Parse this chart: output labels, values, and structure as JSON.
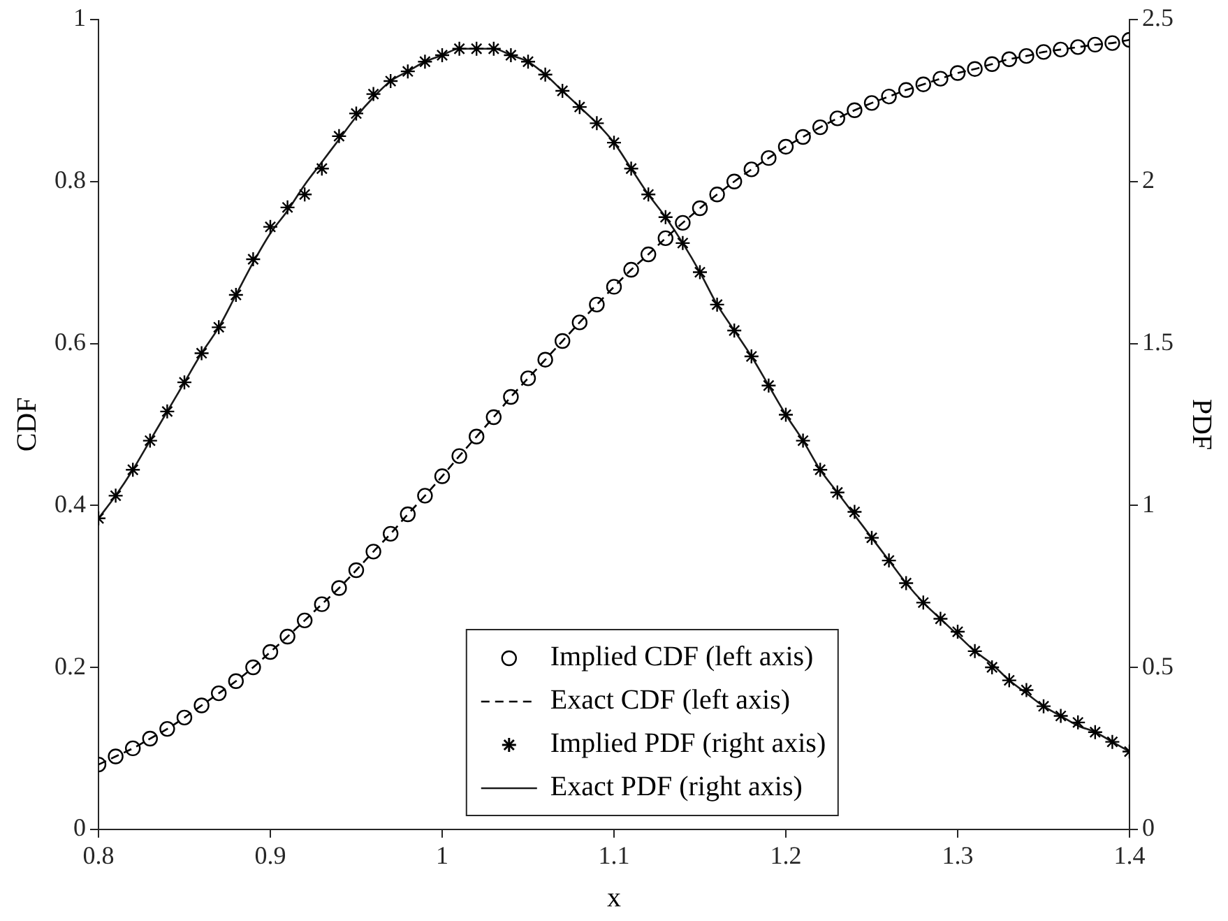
{
  "chart_data": {
    "type": "scatter",
    "xlabel": "x",
    "ylabel": "CDF",
    "y2label": "PDF",
    "x": [
      0.8,
      0.81,
      0.82,
      0.83,
      0.84,
      0.85,
      0.86,
      0.87,
      0.88,
      0.89,
      0.9,
      0.91,
      0.92,
      0.93,
      0.94,
      0.95,
      0.96,
      0.97,
      0.98,
      0.99,
      1,
      1.01,
      1.02,
      1.03,
      1.04,
      1.05,
      1.06,
      1.07,
      1.08,
      1.09,
      1.1,
      1.11,
      1.12,
      1.13,
      1.14,
      1.15,
      1.16,
      1.17,
      1.18,
      1.19,
      1.2,
      1.21,
      1.22,
      1.23,
      1.24,
      1.25,
      1.26,
      1.27,
      1.28,
      1.29,
      1.3,
      1.31,
      1.32,
      1.33,
      1.34,
      1.35,
      1.36,
      1.37,
      1.38,
      1.39,
      1.4
    ],
    "series": [
      {
        "name": "Implied CDF (left axis)",
        "type": "scatter",
        "marker": "circle",
        "color": "#000000",
        "values": [
          0.08,
          0.09,
          0.1,
          0.112,
          0.124,
          0.138,
          0.153,
          0.168,
          0.183,
          0.2,
          0.219,
          0.238,
          0.258,
          0.278,
          0.298,
          0.32,
          0.343,
          0.365,
          0.389,
          0.412,
          0.436,
          0.461,
          0.485,
          0.509,
          0.534,
          0.557,
          0.58,
          0.603,
          0.626,
          0.648,
          0.67,
          0.691,
          0.71,
          0.73,
          0.749,
          0.767,
          0.784,
          0.8,
          0.815,
          0.829,
          0.843,
          0.855,
          0.867,
          0.878,
          0.888,
          0.897,
          0.905,
          0.913,
          0.92,
          0.927,
          0.934,
          0.939,
          0.945,
          0.951,
          0.955,
          0.96,
          0.963,
          0.966,
          0.969,
          0.971,
          0.975
        ]
      },
      {
        "name": "Exact CDF (left axis)",
        "type": "line",
        "line_style": "dashed",
        "color": "#000000",
        "values": [
          0.08,
          0.09,
          0.1,
          0.112,
          0.124,
          0.138,
          0.153,
          0.168,
          0.183,
          0.2,
          0.219,
          0.238,
          0.258,
          0.278,
          0.298,
          0.32,
          0.343,
          0.365,
          0.389,
          0.412,
          0.436,
          0.461,
          0.485,
          0.509,
          0.534,
          0.557,
          0.58,
          0.603,
          0.626,
          0.648,
          0.67,
          0.691,
          0.71,
          0.73,
          0.749,
          0.767,
          0.784,
          0.8,
          0.815,
          0.829,
          0.843,
          0.855,
          0.867,
          0.878,
          0.888,
          0.897,
          0.905,
          0.913,
          0.92,
          0.927,
          0.934,
          0.939,
          0.945,
          0.951,
          0.955,
          0.96,
          0.963,
          0.966,
          0.969,
          0.971,
          0.975
        ]
      },
      {
        "name": "Implied PDF (right axis)",
        "type": "scatter",
        "marker": "cross",
        "axis": "y2",
        "color": "#000000",
        "values": [
          0.96,
          1.03,
          1.11,
          1.2,
          1.29,
          1.38,
          1.47,
          1.55,
          1.65,
          1.76,
          1.86,
          1.92,
          1.96,
          2.04,
          2.14,
          2.21,
          2.27,
          2.31,
          2.34,
          2.37,
          2.39,
          2.41,
          2.41,
          2.41,
          2.39,
          2.37,
          2.33,
          2.28,
          2.23,
          2.18,
          2.12,
          2.04,
          1.96,
          1.89,
          1.81,
          1.72,
          1.62,
          1.54,
          1.46,
          1.37,
          1.28,
          1.2,
          1.11,
          1.04,
          0.98,
          0.9,
          0.83,
          0.76,
          0.7,
          0.65,
          0.61,
          0.55,
          0.5,
          0.46,
          0.43,
          0.38,
          0.35,
          0.33,
          0.3,
          0.27,
          0.24
        ]
      },
      {
        "name": "Exact PDF (right axis)",
        "type": "line",
        "line_style": "solid",
        "axis": "y2",
        "color": "#1a1a1a",
        "values": [
          0.96,
          1.03,
          1.11,
          1.2,
          1.29,
          1.38,
          1.47,
          1.55,
          1.65,
          1.75,
          1.84,
          1.91,
          1.99,
          2.06,
          2.13,
          2.2,
          2.26,
          2.31,
          2.34,
          2.37,
          2.39,
          2.41,
          2.41,
          2.41,
          2.39,
          2.37,
          2.33,
          2.28,
          2.23,
          2.18,
          2.12,
          2.04,
          1.96,
          1.89,
          1.81,
          1.72,
          1.62,
          1.54,
          1.46,
          1.37,
          1.28,
          1.2,
          1.11,
          1.04,
          0.97,
          0.9,
          0.83,
          0.76,
          0.7,
          0.65,
          0.6,
          0.55,
          0.51,
          0.46,
          0.42,
          0.38,
          0.35,
          0.32,
          0.3,
          0.27,
          0.24
        ]
      }
    ],
    "xlim": [
      0.8,
      1.4
    ],
    "xticks": [
      0.8,
      0.9,
      1,
      1.1,
      1.2,
      1.3,
      1.4
    ],
    "ylim": [
      0,
      1
    ],
    "yticks": [
      0,
      0.2,
      0.4,
      0.6,
      0.8,
      1
    ],
    "y2lim": [
      0,
      2.5
    ],
    "y2ticks": [
      0,
      0.5,
      1,
      1.5,
      2,
      2.5
    ],
    "grid": false,
    "legend": "bottom"
  }
}
